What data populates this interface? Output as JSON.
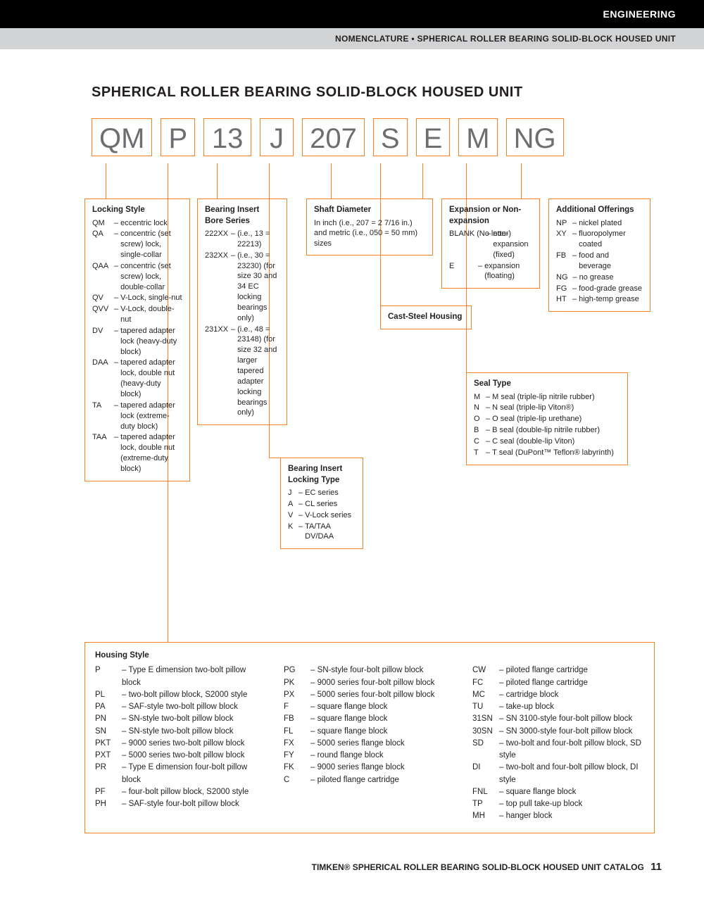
{
  "header": {
    "category": "ENGINEERING",
    "subtitle": "NOMENCLATURE • SPHERICAL ROLLER BEARING SOLID-BLOCK HOUSED UNIT"
  },
  "title": "SPHERICAL ROLLER BEARING SOLID-BLOCK HOUSED UNIT",
  "code": [
    "QM",
    "P",
    "13",
    "J",
    "207",
    "S",
    "E",
    "M",
    "NG"
  ],
  "locking_style": {
    "title": "Locking Style",
    "items": [
      {
        "k": "QM",
        "v": "eccentric lock"
      },
      {
        "k": "QA",
        "v": "concentric (set screw) lock, single-collar"
      },
      {
        "k": "QAA",
        "v": "concentric (set screw) lock, double-collar"
      },
      {
        "k": "QV",
        "v": "V-Lock, single-nut"
      },
      {
        "k": "QVV",
        "v": "V-Lock, double-nut"
      },
      {
        "k": "DV",
        "v": "tapered adapter lock (heavy-duty block)"
      },
      {
        "k": "DAA",
        "v": "tapered adapter lock, double nut (heavy-duty block)"
      },
      {
        "k": "TA",
        "v": "tapered adapter lock (extreme-duty block)"
      },
      {
        "k": "TAA",
        "v": "tapered adapter lock, double nut (extreme-duty block)"
      }
    ]
  },
  "bore_series": {
    "title": "Bearing Insert Bore Series",
    "items": [
      {
        "k": "222XX",
        "v": "(i.e., 13 = 22213)"
      },
      {
        "k": "232XX",
        "v": "(i.e., 30 = 23230) (for size 30 and 34 EC locking bearings only)"
      },
      {
        "k": "231XX",
        "v": "(i.e., 48 = 23148) (for size 32 and larger tapered adapter locking bearings only)"
      }
    ]
  },
  "locking_type": {
    "title": "Bearing Insert Locking Type",
    "items": [
      {
        "k": "J",
        "v": "EC series"
      },
      {
        "k": "A",
        "v": "CL series"
      },
      {
        "k": "V",
        "v": "V-Lock series"
      },
      {
        "k": "K",
        "v": "TA/TAA DV/DAA"
      }
    ]
  },
  "shaft_diameter": {
    "title": "Shaft Diameter",
    "text": "In inch (i.e., 207 = 2 7/16 in.) and metric (i.e., 050 = 50 mm) sizes"
  },
  "cast_steel": {
    "title": "Cast-Steel Housing"
  },
  "expansion": {
    "title": "Expansion or Non-expansion",
    "items": [
      {
        "k": "BLANK (No letter)",
        "v": "non-expansion (fixed)"
      },
      {
        "k": "E",
        "v": "expansion (floating)"
      }
    ]
  },
  "seal_type": {
    "title": "Seal Type",
    "items": [
      {
        "k": "M",
        "v": "M seal (triple-lip nitrile rubber)"
      },
      {
        "k": "N",
        "v": "N seal (triple-lip Viton®)"
      },
      {
        "k": "O",
        "v": "O seal (triple-lip urethane)"
      },
      {
        "k": "B",
        "v": "B seal (double-lip nitrile rubber)"
      },
      {
        "k": "C",
        "v": "C seal (double-lip Viton)"
      },
      {
        "k": "T",
        "v": "T seal (DuPont™ Teflon® labyrinth)"
      }
    ]
  },
  "additional": {
    "title": "Additional Offerings",
    "items": [
      {
        "k": "NP",
        "v": "nickel plated"
      },
      {
        "k": "XY",
        "v": "fluoropolymer coated"
      },
      {
        "k": "FB",
        "v": "food and beverage"
      },
      {
        "k": "NG",
        "v": "no grease"
      },
      {
        "k": "FG",
        "v": "food-grade grease"
      },
      {
        "k": "HT",
        "v": "high-temp grease"
      }
    ]
  },
  "housing": {
    "title": "Housing Style",
    "col1": [
      {
        "k": "P",
        "v": "Type E dimension two-bolt pillow block"
      },
      {
        "k": "PL",
        "v": "two-bolt pillow block, S2000 style"
      },
      {
        "k": "PA",
        "v": "SAF-style two-bolt pillow block"
      },
      {
        "k": "PN",
        "v": "SN-style two-bolt pillow block"
      },
      {
        "k": "SN",
        "v": "SN-style two-bolt pillow block"
      },
      {
        "k": "PKT",
        "v": "9000 series two-bolt pillow block"
      },
      {
        "k": "PXT",
        "v": "5000 series two-bolt pillow block"
      },
      {
        "k": "PR",
        "v": "Type E dimension four-bolt pillow block"
      },
      {
        "k": "PF",
        "v": "four-bolt pillow block, S2000 style"
      },
      {
        "k": "PH",
        "v": "SAF-style four-bolt pillow block"
      }
    ],
    "col2": [
      {
        "k": "PG",
        "v": "SN-style four-bolt pillow block"
      },
      {
        "k": "PK",
        "v": "9000 series four-bolt pillow block"
      },
      {
        "k": "PX",
        "v": "5000 series four-bolt pillow block"
      },
      {
        "k": "F",
        "v": "square flange block"
      },
      {
        "k": "FB",
        "v": "square flange block"
      },
      {
        "k": "FL",
        "v": "square flange block"
      },
      {
        "k": "FX",
        "v": "5000 series flange block"
      },
      {
        "k": "FY",
        "v": "round flange block"
      },
      {
        "k": "FK",
        "v": "9000 series flange block"
      },
      {
        "k": "C",
        "v": "piloted flange cartridge"
      }
    ],
    "col3": [
      {
        "k": "CW",
        "v": "piloted flange cartridge"
      },
      {
        "k": "FC",
        "v": "piloted flange cartridge"
      },
      {
        "k": "MC",
        "v": "cartridge block"
      },
      {
        "k": "TU",
        "v": "take-up block"
      },
      {
        "k": "31SN",
        "v": "SN 3100-style four-bolt pillow block"
      },
      {
        "k": "30SN",
        "v": "SN 3000-style four-bolt pillow block"
      },
      {
        "k": "SD",
        "v": "two-bolt and four-bolt pillow block, SD style"
      },
      {
        "k": "DI",
        "v": "two-bolt and four-bolt pillow block, DI style"
      },
      {
        "k": "FNL",
        "v": "square flange block"
      },
      {
        "k": "TP",
        "v": "top pull take-up block"
      },
      {
        "k": "MH",
        "v": "hanger block"
      }
    ]
  },
  "footer": {
    "text": "TIMKEN® SPHERICAL ROLLER BEARING SOLID-BLOCK HOUSED UNIT CATALOG",
    "page": "11"
  },
  "colors": {
    "accent": "#f58220",
    "text": "#231f20",
    "code_text": "#6d6e71"
  }
}
